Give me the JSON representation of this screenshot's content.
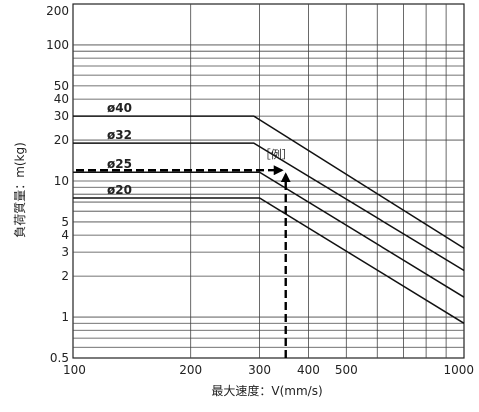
{
  "chart_data": {
    "type": "line",
    "x_scale": "log",
    "y_scale": "log",
    "xlim": [
      100,
      1000
    ],
    "ylim": [
      0.5,
      200
    ],
    "xlabel": "最大速度：V(mm/s)",
    "ylabel": "負荷質量：m(kg)",
    "x_ticks": [
      {
        "value": 100,
        "label": "100"
      },
      {
        "value": 200,
        "label": "200"
      },
      {
        "value": 300,
        "label": "300"
      },
      {
        "value": 400,
        "label": "400"
      },
      {
        "value": 500,
        "label": "500"
      },
      {
        "value": 1000,
        "label": "1000"
      }
    ],
    "y_ticks": [
      {
        "value": 0.5,
        "label": "0.5"
      },
      {
        "value": 1,
        "label": "1"
      },
      {
        "value": 2,
        "label": "2"
      },
      {
        "value": 3,
        "label": "3"
      },
      {
        "value": 4,
        "label": "4"
      },
      {
        "value": 5,
        "label": "5"
      },
      {
        "value": 10,
        "label": "10"
      },
      {
        "value": 20,
        "label": "20"
      },
      {
        "value": 30,
        "label": "30"
      },
      {
        "value": 40,
        "label": "40"
      },
      {
        "value": 50,
        "label": "50"
      },
      {
        "value": 100,
        "label": "100"
      },
      {
        "value": 200,
        "label": "200"
      }
    ],
    "grid": true,
    "series": [
      {
        "name": "ø40",
        "x": [
          100,
          290,
          1000
        ],
        "y": [
          30,
          30,
          3.2
        ]
      },
      {
        "name": "ø32",
        "x": [
          100,
          290,
          1000
        ],
        "y": [
          19,
          19,
          2.2
        ]
      },
      {
        "name": "ø25",
        "x": [
          100,
          300,
          1000
        ],
        "y": [
          11.6,
          11.6,
          1.4
        ]
      },
      {
        "name": "ø20",
        "x": [
          100,
          300,
          1000
        ],
        "y": [
          7.5,
          7.5,
          0.9
        ]
      }
    ],
    "annotation": {
      "label": "［例］",
      "x": 350,
      "y": 12,
      "arrows": [
        {
          "from": [
            100,
            12
          ],
          "to": [
            350,
            12
          ]
        },
        {
          "from": [
            350,
            0.5
          ],
          "to": [
            350,
            12
          ]
        }
      ]
    }
  },
  "colors": {
    "line": "#111111",
    "grid": "#444444",
    "background": "#ffffff"
  }
}
